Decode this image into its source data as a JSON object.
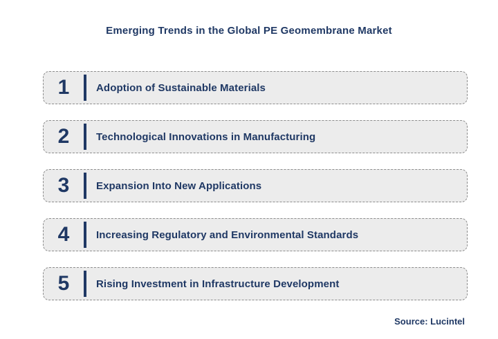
{
  "title": "Emerging Trends in the Global PE Geomembrane Market",
  "source": "Source: Lucintel",
  "colors": {
    "navy": "#1F3864",
    "box_background": "#ECECEC",
    "box_border": "#8C8C8C"
  },
  "trends": [
    {
      "number": "1",
      "label": "Adoption of Sustainable Materials"
    },
    {
      "number": "2",
      "label": "Technological Innovations in Manufacturing"
    },
    {
      "number": "3",
      "label": "Expansion Into New Applications"
    },
    {
      "number": "4",
      "label": "Increasing Regulatory and Environmental Standards"
    },
    {
      "number": "5",
      "label": "Rising Investment in Infrastructure Development"
    }
  ]
}
